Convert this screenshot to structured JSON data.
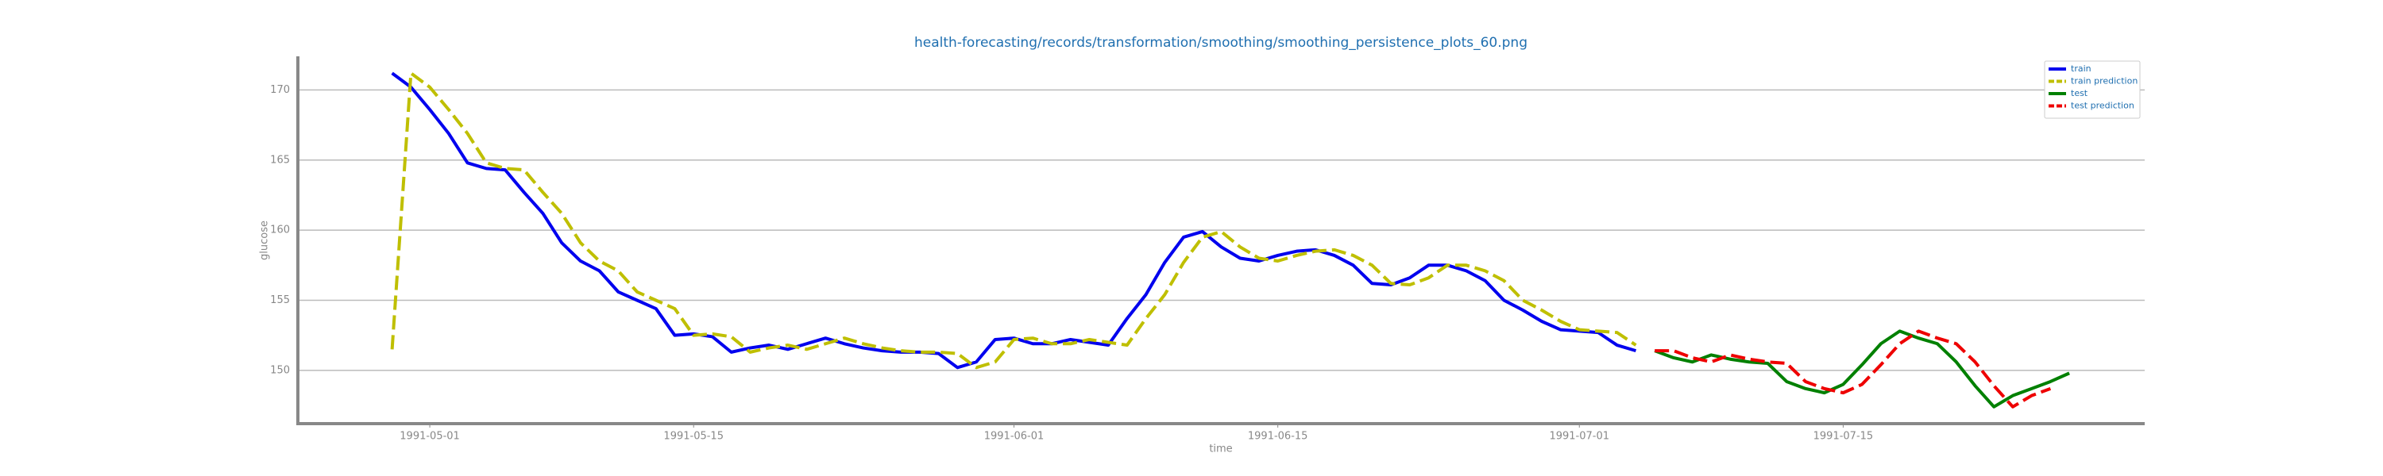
{
  "chart_data": {
    "type": "line",
    "title": "health-forecasting/records/transformation/smoothing/smoothing_persistence_plots_60.png",
    "xlabel": "time",
    "ylabel": "glucose",
    "xlim": [
      "1991-04-24",
      "1991-07-31"
    ],
    "xticks": [
      "1991-05-01",
      "1991-05-15",
      "1991-06-01",
      "1991-06-15",
      "1991-07-01",
      "1991-07-15"
    ],
    "ylim": [
      146.2,
      172.4
    ],
    "yticks": [
      150,
      155,
      160,
      165,
      170
    ],
    "grid": true,
    "legend": "upper right",
    "series": [
      {
        "name": "train",
        "color": "#0000ee",
        "dashed": false,
        "x": [
          "1991-04-29",
          "1991-04-30",
          "1991-05-01",
          "1991-05-02",
          "1991-05-03",
          "1991-05-04",
          "1991-05-05",
          "1991-05-06",
          "1991-05-07",
          "1991-05-08",
          "1991-05-09",
          "1991-05-10",
          "1991-05-11",
          "1991-05-12",
          "1991-05-13",
          "1991-05-14",
          "1991-05-15",
          "1991-05-16",
          "1991-05-17",
          "1991-05-18",
          "1991-05-19",
          "1991-05-20",
          "1991-05-21",
          "1991-05-22",
          "1991-05-23",
          "1991-05-24",
          "1991-05-25",
          "1991-05-26",
          "1991-05-27",
          "1991-05-28",
          "1991-05-29",
          "1991-05-30",
          "1991-05-31",
          "1991-06-01",
          "1991-06-02",
          "1991-06-03",
          "1991-06-04",
          "1991-06-05",
          "1991-06-06",
          "1991-06-07",
          "1991-06-08",
          "1991-06-09",
          "1991-06-10",
          "1991-06-11",
          "1991-06-12",
          "1991-06-13",
          "1991-06-14",
          "1991-06-15",
          "1991-06-16",
          "1991-06-17",
          "1991-06-18",
          "1991-06-19",
          "1991-06-20",
          "1991-06-21",
          "1991-06-22",
          "1991-06-23",
          "1991-06-24",
          "1991-06-25",
          "1991-06-26",
          "1991-06-27",
          "1991-06-28",
          "1991-06-29",
          "1991-06-30",
          "1991-07-01",
          "1991-07-02",
          "1991-07-03",
          "1991-07-04"
        ],
        "values": [
          171.2,
          170.2,
          168.6,
          166.9,
          164.8,
          164.4,
          164.3,
          162.7,
          161.2,
          159.1,
          157.8,
          157.1,
          155.6,
          155.0,
          154.4,
          152.5,
          152.6,
          152.4,
          151.3,
          151.6,
          151.8,
          151.5,
          151.9,
          152.3,
          151.9,
          151.6,
          151.4,
          151.3,
          151.3,
          151.2,
          150.2,
          150.6,
          152.2,
          152.3,
          151.9,
          151.9,
          152.2,
          152.0,
          151.8,
          153.7,
          155.4,
          157.7,
          159.5,
          159.9,
          158.8,
          158.0,
          157.8,
          158.2,
          158.5,
          158.6,
          158.2,
          157.5,
          156.2,
          156.1,
          156.6,
          157.5,
          157.5,
          157.1,
          156.4,
          155.0,
          154.3,
          153.5,
          152.9,
          152.8,
          152.7,
          151.8,
          151.4
        ]
      },
      {
        "name": "train prediction",
        "color": "#bfbf00",
        "dashed": true,
        "x": [
          "1991-04-29",
          "1991-04-30",
          "1991-05-01",
          "1991-05-02",
          "1991-05-03",
          "1991-05-04",
          "1991-05-05",
          "1991-05-06",
          "1991-05-07",
          "1991-05-08",
          "1991-05-09",
          "1991-05-10",
          "1991-05-11",
          "1991-05-12",
          "1991-05-13",
          "1991-05-14",
          "1991-05-15",
          "1991-05-16",
          "1991-05-17",
          "1991-05-18",
          "1991-05-19",
          "1991-05-20",
          "1991-05-21",
          "1991-05-22",
          "1991-05-23",
          "1991-05-24",
          "1991-05-25",
          "1991-05-26",
          "1991-05-27",
          "1991-05-28",
          "1991-05-29",
          "1991-05-30",
          "1991-05-31",
          "1991-06-01",
          "1991-06-02",
          "1991-06-03",
          "1991-06-04",
          "1991-06-05",
          "1991-06-06",
          "1991-06-07",
          "1991-06-08",
          "1991-06-09",
          "1991-06-10",
          "1991-06-11",
          "1991-06-12",
          "1991-06-13",
          "1991-06-14",
          "1991-06-15",
          "1991-06-16",
          "1991-06-17",
          "1991-06-18",
          "1991-06-19",
          "1991-06-20",
          "1991-06-21",
          "1991-06-22",
          "1991-06-23",
          "1991-06-24",
          "1991-06-25",
          "1991-06-26",
          "1991-06-27",
          "1991-06-28",
          "1991-06-29",
          "1991-06-30",
          "1991-07-01",
          "1991-07-02",
          "1991-07-03",
          "1991-07-04"
        ],
        "values": [
          151.5,
          171.2,
          170.2,
          168.6,
          166.9,
          164.8,
          164.4,
          164.3,
          162.7,
          161.2,
          159.1,
          157.8,
          157.1,
          155.6,
          155.0,
          154.4,
          152.5,
          152.6,
          152.4,
          151.3,
          151.6,
          151.8,
          151.5,
          151.9,
          152.3,
          151.9,
          151.6,
          151.4,
          151.3,
          151.3,
          151.2,
          150.2,
          150.6,
          152.2,
          152.3,
          151.9,
          151.9,
          152.2,
          152.0,
          151.8,
          153.7,
          155.4,
          157.7,
          159.5,
          159.9,
          158.8,
          158.0,
          157.8,
          158.2,
          158.5,
          158.6,
          158.2,
          157.5,
          156.2,
          156.1,
          156.6,
          157.5,
          157.5,
          157.1,
          156.4,
          155.0,
          154.3,
          153.5,
          152.9,
          152.8,
          152.7,
          151.8
        ]
      },
      {
        "name": "test",
        "color": "#008000",
        "dashed": false,
        "x": [
          "1991-07-05",
          "1991-07-06",
          "1991-07-07",
          "1991-07-08",
          "1991-07-09",
          "1991-07-10",
          "1991-07-11",
          "1991-07-12",
          "1991-07-13",
          "1991-07-14",
          "1991-07-15",
          "1991-07-16",
          "1991-07-17",
          "1991-07-18",
          "1991-07-19",
          "1991-07-20",
          "1991-07-21",
          "1991-07-22",
          "1991-07-23",
          "1991-07-24",
          "1991-07-25",
          "1991-07-26",
          "1991-07-27"
        ],
        "values": [
          151.4,
          150.9,
          150.6,
          151.1,
          150.8,
          150.6,
          150.5,
          149.2,
          148.7,
          148.4,
          149.0,
          150.4,
          151.9,
          152.8,
          152.3,
          151.9,
          150.6,
          148.9,
          147.4,
          148.2,
          148.7,
          149.2,
          149.8
        ]
      },
      {
        "name": "test prediction",
        "color": "#ee0000",
        "dashed": true,
        "x": [
          "1991-07-05",
          "1991-07-06",
          "1991-07-07",
          "1991-07-08",
          "1991-07-09",
          "1991-07-10",
          "1991-07-11",
          "1991-07-12",
          "1991-07-13",
          "1991-07-14",
          "1991-07-15",
          "1991-07-16",
          "1991-07-17",
          "1991-07-18",
          "1991-07-19",
          "1991-07-20",
          "1991-07-21",
          "1991-07-22",
          "1991-07-23",
          "1991-07-24",
          "1991-07-25",
          "1991-07-26"
        ],
        "values": [
          151.4,
          151.4,
          150.9,
          150.6,
          151.1,
          150.8,
          150.6,
          150.5,
          149.2,
          148.7,
          148.4,
          149.0,
          150.4,
          151.9,
          152.8,
          152.3,
          151.9,
          150.6,
          148.9,
          147.4,
          148.2,
          148.7
        ]
      }
    ]
  }
}
